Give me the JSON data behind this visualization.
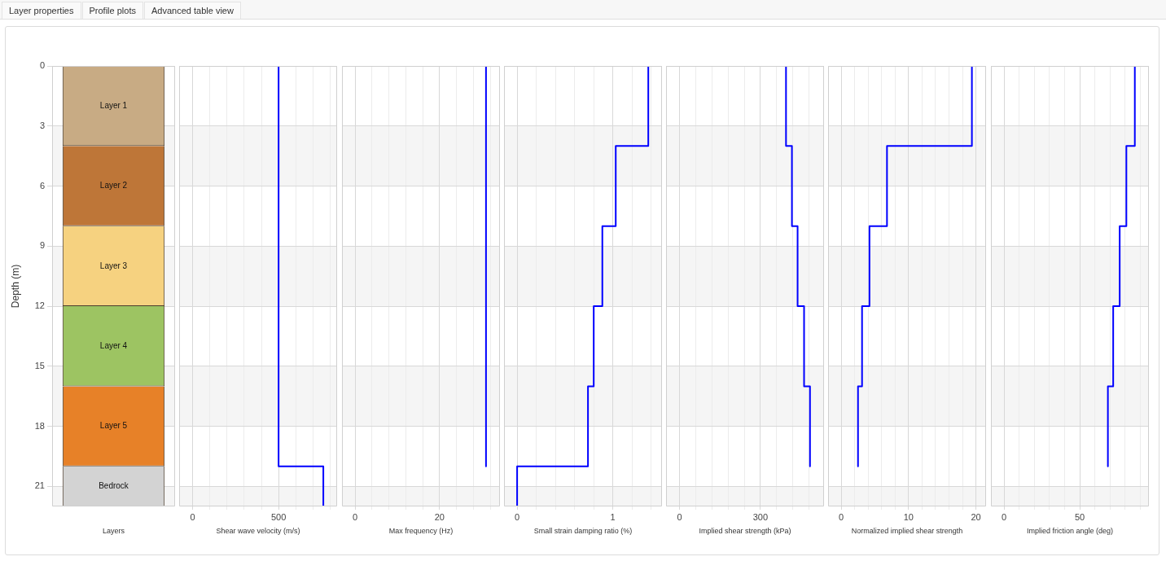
{
  "chart_data": [
    {
      "type": "other",
      "annotations": [
        "Layer properties",
        "Profile plots",
        "Advanced table view"
      ]
    },
    {
      "type": "bar",
      "stacked": true,
      "categories": [
        null
      ],
      "xlabel": "Layers",
      "ylabel": "Depth (m)",
      "ylim": [
        22,
        0
      ],
      "yticks": [
        0,
        3,
        6,
        9,
        12,
        15,
        18,
        21
      ],
      "tick_labels": "y",
      "grid": "y",
      "bands": [
        {
          "axis": "y",
          "from": 3,
          "to": 6,
          "color": "#f5f5f5"
        },
        {
          "axis": "y",
          "from": 9,
          "to": 12,
          "color": "#f5f5f5"
        },
        {
          "axis": "y",
          "from": 15,
          "to": 18,
          "color": "#f5f5f5"
        },
        {
          "axis": "y",
          "from": 21,
          "to": 22,
          "color": "#f5f5f5"
        }
      ],
      "series": [
        {
          "name": "Layer 1",
          "color": "#c8ab84",
          "values": [
            4
          ]
        },
        {
          "name": "Layer 2",
          "color": "#be7638",
          "values": [
            4
          ]
        },
        {
          "name": "Layer 3",
          "color": "#f6d280",
          "values": [
            4
          ]
        },
        {
          "name": "Layer 4",
          "color": "#9dc462",
          "values": [
            4
          ]
        },
        {
          "name": "Layer 5",
          "color": "#e78128",
          "values": [
            4
          ]
        },
        {
          "name": "Bedrock",
          "color": "#d3d3d3",
          "values": [
            2
          ]
        }
      ]
    },
    {
      "type": "line",
      "marker": "none",
      "xlabel": "Shear wave velocity (m/s)",
      "xlim": [
        -78,
        840
      ],
      "xticks": [
        0,
        {
          "value": 100,
          "label": null
        },
        {
          "value": 200,
          "label": null
        },
        {
          "value": 300,
          "label": null
        },
        {
          "value": 400,
          "label": null
        },
        500,
        {
          "value": 600,
          "label": null
        },
        {
          "value": 700,
          "label": null
        },
        {
          "value": 800,
          "label": null
        }
      ],
      "ylim": [
        22,
        0
      ],
      "yticks": [
        0,
        3,
        6,
        9,
        12,
        15,
        18,
        21
      ],
      "tick_labels": "x",
      "grid": true,
      "bands": [
        {
          "axis": "y",
          "from": 3,
          "to": 6,
          "color": "#f5f5f5"
        },
        {
          "axis": "y",
          "from": 9,
          "to": 12,
          "color": "#f5f5f5"
        },
        {
          "axis": "y",
          "from": 15,
          "to": 18,
          "color": "#f5f5f5"
        },
        {
          "axis": "y",
          "from": 21,
          "to": 22,
          "color": "#f5f5f5"
        }
      ],
      "series": [
        {
          "color": "#0000ff",
          "x": [
            500,
            500,
            760,
            760
          ],
          "values": [
            0,
            20,
            20,
            22
          ]
        }
      ]
    },
    {
      "type": "line",
      "marker": "none",
      "xlabel": "Max frequency (Hz)",
      "xlim": [
        -3.1,
        34.3
      ],
      "xticks": [
        0,
        {
          "value": 4,
          "label": null
        },
        {
          "value": 8,
          "label": null
        },
        {
          "value": 12,
          "label": null
        },
        {
          "value": 16,
          "label": null
        },
        20,
        {
          "value": 24,
          "label": null
        },
        {
          "value": 28,
          "label": null
        },
        {
          "value": 32,
          "label": null
        }
      ],
      "ylim": [
        22,
        0
      ],
      "yticks": [
        0,
        3,
        6,
        9,
        12,
        15,
        18,
        21
      ],
      "tick_labels": "x",
      "grid": true,
      "bands": [
        {
          "axis": "y",
          "from": 3,
          "to": 6,
          "color": "#f5f5f5"
        },
        {
          "axis": "y",
          "from": 9,
          "to": 12,
          "color": "#f5f5f5"
        },
        {
          "axis": "y",
          "from": 15,
          "to": 18,
          "color": "#f5f5f5"
        },
        {
          "axis": "y",
          "from": 21,
          "to": 22,
          "color": "#f5f5f5"
        }
      ],
      "series": [
        {
          "color": "#0000ff",
          "x": [
            31,
            31
          ],
          "values": [
            0,
            20
          ]
        }
      ]
    },
    {
      "type": "line",
      "marker": "none",
      "xlabel": "Small strain damping ratio (%)",
      "xlim": [
        -0.137,
        1.513
      ],
      "xticks": [
        0,
        {
          "value": 0.2,
          "label": null
        },
        {
          "value": 0.4,
          "label": null
        },
        {
          "value": 0.6,
          "label": null
        },
        {
          "value": 0.8,
          "label": null
        },
        1,
        {
          "value": 1.2,
          "label": null
        },
        {
          "value": 1.4,
          "label": null
        }
      ],
      "ylim": [
        22,
        0
      ],
      "yticks": [
        0,
        3,
        6,
        9,
        12,
        15,
        18,
        21
      ],
      "tick_labels": "x",
      "grid": true,
      "bands": [
        {
          "axis": "y",
          "from": 3,
          "to": 6,
          "color": "#f5f5f5"
        },
        {
          "axis": "y",
          "from": 9,
          "to": 12,
          "color": "#f5f5f5"
        },
        {
          "axis": "y",
          "from": 15,
          "to": 18,
          "color": "#f5f5f5"
        },
        {
          "axis": "y",
          "from": 21,
          "to": 22,
          "color": "#f5f5f5"
        }
      ],
      "series": [
        {
          "color": "#0000ff",
          "x": [
            1.37,
            1.37,
            1.03,
            1.03,
            0.89,
            0.89,
            0.8,
            0.8,
            0.74,
            0.74,
            0,
            0
          ],
          "values": [
            0,
            4,
            4,
            8,
            8,
            12,
            12,
            16,
            16,
            20,
            20,
            22
          ]
        }
      ]
    },
    {
      "type": "line",
      "marker": "none",
      "xlabel": "Implied shear strength (kPa)",
      "xlim": [
        -50,
        536
      ],
      "xticks": [
        0,
        {
          "value": 60,
          "label": null
        },
        {
          "value": 120,
          "label": null
        },
        {
          "value": 180,
          "label": null
        },
        {
          "value": 240,
          "label": null
        },
        300,
        {
          "value": 360,
          "label": null
        },
        {
          "value": 420,
          "label": null
        },
        {
          "value": 480,
          "label": null
        }
      ],
      "ylim": [
        22,
        0
      ],
      "yticks": [
        0,
        3,
        6,
        9,
        12,
        15,
        18,
        21
      ],
      "tick_labels": "x",
      "grid": true,
      "bands": [
        {
          "axis": "y",
          "from": 3,
          "to": 6,
          "color": "#f5f5f5"
        },
        {
          "axis": "y",
          "from": 9,
          "to": 12,
          "color": "#f5f5f5"
        },
        {
          "axis": "y",
          "from": 15,
          "to": 18,
          "color": "#f5f5f5"
        },
        {
          "axis": "y",
          "from": 21,
          "to": 22,
          "color": "#f5f5f5"
        }
      ],
      "series": [
        {
          "color": "#0000ff",
          "x": [
            395,
            395,
            417,
            417,
            438,
            438,
            462,
            462,
            484,
            484
          ],
          "values": [
            0,
            4,
            4,
            8,
            8,
            12,
            12,
            16,
            16,
            20
          ]
        }
      ]
    },
    {
      "type": "line",
      "marker": "none",
      "xlabel": "Normalized implied shear strength",
      "xlim": [
        -1.94,
        21.5
      ],
      "xticks": [
        0,
        {
          "value": 2,
          "label": null
        },
        {
          "value": 4,
          "label": null
        },
        {
          "value": 6,
          "label": null
        },
        {
          "value": 8,
          "label": null
        },
        10,
        {
          "value": 12,
          "label": null
        },
        {
          "value": 14,
          "label": null
        },
        {
          "value": 16,
          "label": null
        },
        {
          "value": 18,
          "label": null
        },
        20
      ],
      "ylim": [
        22,
        0
      ],
      "yticks": [
        0,
        3,
        6,
        9,
        12,
        15,
        18,
        21
      ],
      "tick_labels": "x",
      "grid": true,
      "bands": [
        {
          "axis": "y",
          "from": 3,
          "to": 6,
          "color": "#f5f5f5"
        },
        {
          "axis": "y",
          "from": 9,
          "to": 12,
          "color": "#f5f5f5"
        },
        {
          "axis": "y",
          "from": 15,
          "to": 18,
          "color": "#f5f5f5"
        },
        {
          "axis": "y",
          "from": 21,
          "to": 22,
          "color": "#f5f5f5"
        }
      ],
      "series": [
        {
          "color": "#0000ff",
          "x": [
            19.4,
            19.4,
            6.8,
            6.8,
            4.2,
            4.2,
            3.1,
            3.1,
            2.5,
            2.5
          ],
          "values": [
            0,
            4,
            4,
            8,
            8,
            12,
            12,
            16,
            16,
            20
          ]
        }
      ]
    },
    {
      "type": "line",
      "marker": "none",
      "xlabel": "Implied friction angle (deg)",
      "xlim": [
        -8.7,
        95.7
      ],
      "xticks": [
        0,
        {
          "value": 10,
          "label": null
        },
        {
          "value": 20,
          "label": null
        },
        {
          "value": 30,
          "label": null
        },
        {
          "value": 40,
          "label": null
        },
        50,
        {
          "value": 60,
          "label": null
        },
        {
          "value": 70,
          "label": null
        },
        {
          "value": 80,
          "label": null
        },
        {
          "value": 90,
          "label": null
        }
      ],
      "ylim": [
        22,
        0
      ],
      "yticks": [
        0,
        3,
        6,
        9,
        12,
        15,
        18,
        21
      ],
      "tick_labels": "x",
      "grid": true,
      "bands": [
        {
          "axis": "y",
          "from": 3,
          "to": 6,
          "color": "#f5f5f5"
        },
        {
          "axis": "y",
          "from": 9,
          "to": 12,
          "color": "#f5f5f5"
        },
        {
          "axis": "y",
          "from": 15,
          "to": 18,
          "color": "#f5f5f5"
        },
        {
          "axis": "y",
          "from": 21,
          "to": 22,
          "color": "#f5f5f5"
        }
      ],
      "series": [
        {
          "color": "#0000ff",
          "x": [
            86.4,
            86.4,
            80.8,
            80.8,
            76.4,
            76.4,
            72.1,
            72.1,
            68.6,
            68.6
          ],
          "values": [
            0,
            4,
            4,
            8,
            8,
            12,
            12,
            16,
            16,
            20
          ]
        }
      ]
    }
  ]
}
